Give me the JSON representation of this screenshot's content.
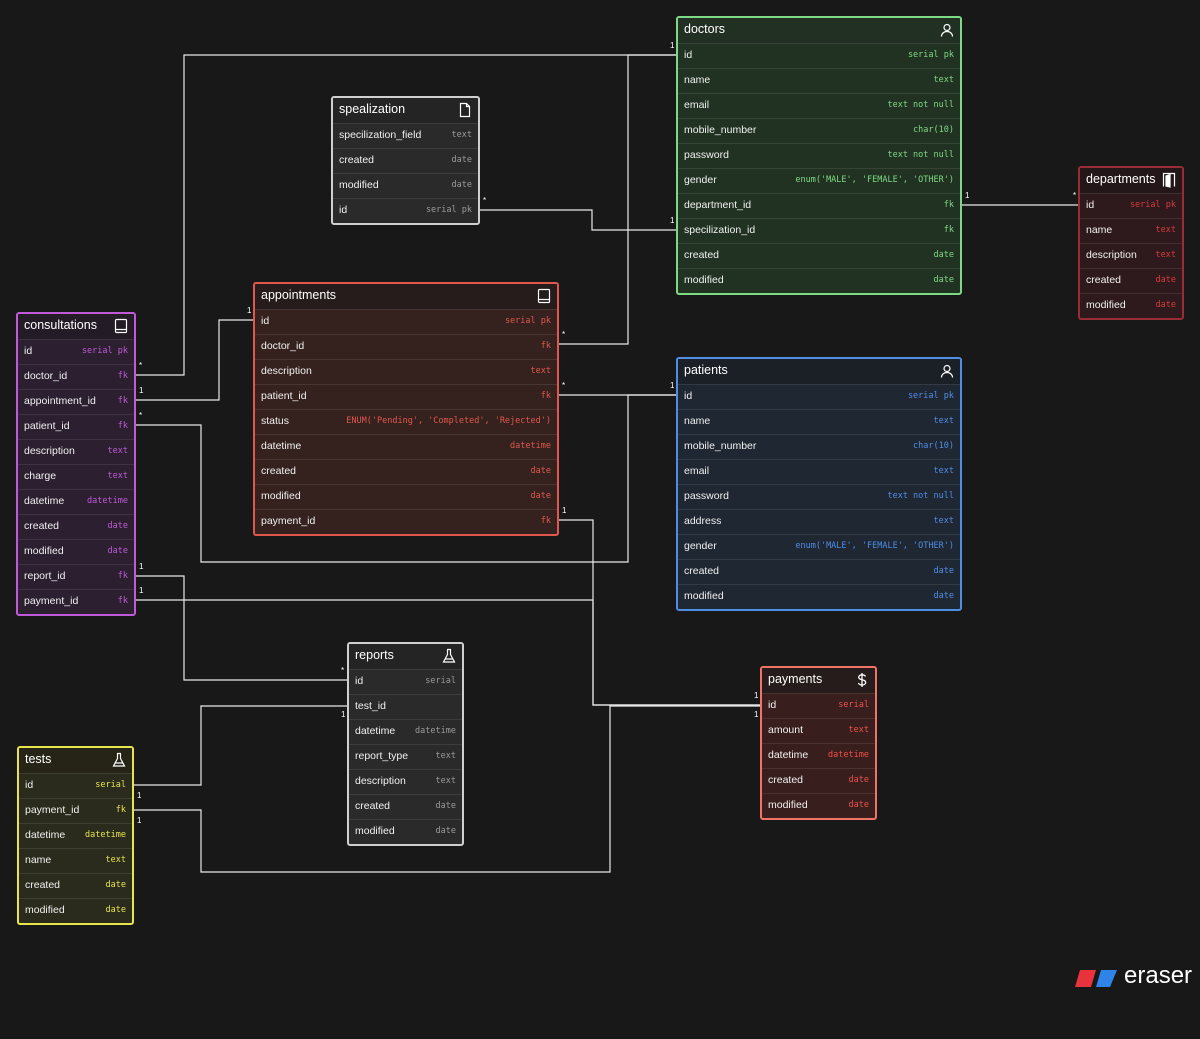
{
  "colors": {
    "doctors": {
      "border": "#7ed984",
      "header_bg": "#222f23",
      "body_bg": "#213222",
      "type": "#7ed984"
    },
    "spealization": {
      "border": "#cfcfcf",
      "header_bg": "#242424",
      "body_bg": "#2a2a2a",
      "type": "#9a9a9a"
    },
    "appointments": {
      "border": "#e0584c",
      "header_bg": "#251c1b",
      "body_bg": "#35221f",
      "type": "#e0584c"
    },
    "consultations": {
      "border": "#c05ad8",
      "header_bg": "#231c26",
      "body_bg": "#2b1f30",
      "type": "#c05ad8"
    },
    "departments": {
      "border": "#9a2c34",
      "header_bg": "#231719",
      "body_bg": "#2e1a1d",
      "type": "#d8393f"
    },
    "patients": {
      "border": "#4f8ee6",
      "header_bg": "#1b1f26",
      "body_bg": "#1f2732",
      "type": "#4f8ee6"
    },
    "reports": {
      "border": "#cfcfcf",
      "header_bg": "#242424",
      "body_bg": "#2a2a2a",
      "type": "#9a9a9a"
    },
    "payments": {
      "border": "#f07468",
      "header_bg": "#261c1b",
      "body_bg": "#381f1d",
      "type": "#f0504a"
    },
    "tests": {
      "border": "#e7e44c",
      "header_bg": "#252416",
      "body_bg": "#2a2b1c",
      "type": "#e7e44c"
    },
    "link": "#e8e8e8",
    "brand_red": "#e8333c",
    "brand_blue": "#2e84e8"
  },
  "entities": {
    "doctors": {
      "title": "doctors",
      "icon": "user-icon",
      "fields": [
        {
          "name": "id",
          "type": "serial pk"
        },
        {
          "name": "name",
          "type": "text"
        },
        {
          "name": "email",
          "type": "text not null"
        },
        {
          "name": "mobile_number",
          "type": "char(10)"
        },
        {
          "name": "password",
          "type": "text not null"
        },
        {
          "name": "gender",
          "type": "enum('MALE', 'FEMALE', 'OTHER')"
        },
        {
          "name": "department_id",
          "type": "fk"
        },
        {
          "name": "specilization_id",
          "type": "fk"
        },
        {
          "name": "created",
          "type": "date"
        },
        {
          "name": "modified",
          "type": "date"
        }
      ]
    },
    "spealization": {
      "title": "spealization",
      "icon": "document-icon",
      "fields": [
        {
          "name": "specilization_field",
          "type": "text"
        },
        {
          "name": "created",
          "type": "date"
        },
        {
          "name": "modified",
          "type": "date"
        },
        {
          "name": "id",
          "type": "serial pk"
        }
      ]
    },
    "appointments": {
      "title": "appointments",
      "icon": "book-icon",
      "fields": [
        {
          "name": "id",
          "type": "serial pk"
        },
        {
          "name": "doctor_id",
          "type": "fk"
        },
        {
          "name": "description",
          "type": "text"
        },
        {
          "name": "patient_id",
          "type": "fk"
        },
        {
          "name": "status",
          "type": "ENUM('Pending', 'Completed', 'Rejected')"
        },
        {
          "name": "datetime",
          "type": "datetime"
        },
        {
          "name": "created",
          "type": "date"
        },
        {
          "name": "modified",
          "type": "date"
        },
        {
          "name": "payment_id",
          "type": "fk"
        }
      ]
    },
    "consultations": {
      "title": "consultations",
      "icon": "book-icon",
      "fields": [
        {
          "name": "id",
          "type": "serial pk"
        },
        {
          "name": "doctor_id",
          "type": "fk"
        },
        {
          "name": "appointment_id",
          "type": "fk"
        },
        {
          "name": "patient_id",
          "type": "fk"
        },
        {
          "name": "description",
          "type": "text"
        },
        {
          "name": "charge",
          "type": "text"
        },
        {
          "name": "datetime",
          "type": "datetime"
        },
        {
          "name": "created",
          "type": "date"
        },
        {
          "name": "modified",
          "type": "date"
        },
        {
          "name": "report_id",
          "type": "fk"
        },
        {
          "name": "payment_id",
          "type": "fk"
        }
      ]
    },
    "departments": {
      "title": "departments",
      "icon": "door-icon",
      "fields": [
        {
          "name": "id",
          "type": "serial pk"
        },
        {
          "name": "name",
          "type": "text"
        },
        {
          "name": "description",
          "type": "text"
        },
        {
          "name": "created",
          "type": "date"
        },
        {
          "name": "modified",
          "type": "date"
        }
      ]
    },
    "patients": {
      "title": "patients",
      "icon": "user-icon",
      "fields": [
        {
          "name": "id",
          "type": "serial pk"
        },
        {
          "name": "name",
          "type": "text"
        },
        {
          "name": "mobile_number",
          "type": "char(10)"
        },
        {
          "name": "email",
          "type": "text"
        },
        {
          "name": "password",
          "type": "text not null"
        },
        {
          "name": "address",
          "type": "text"
        },
        {
          "name": "gender",
          "type": "enum('MALE', 'FEMALE', 'OTHER')"
        },
        {
          "name": "created",
          "type": "date"
        },
        {
          "name": "modified",
          "type": "date"
        }
      ]
    },
    "reports": {
      "title": "reports",
      "icon": "flask-icon",
      "fields": [
        {
          "name": "id",
          "type": "serial"
        },
        {
          "name": "test_id",
          "type": ""
        },
        {
          "name": "datetime",
          "type": "datetime"
        },
        {
          "name": "report_type",
          "type": "text"
        },
        {
          "name": "description",
          "type": "text"
        },
        {
          "name": "created",
          "type": "date"
        },
        {
          "name": "modified",
          "type": "date"
        }
      ]
    },
    "payments": {
      "title": "payments",
      "icon": "dollar-icon",
      "fields": [
        {
          "name": "id",
          "type": "serial"
        },
        {
          "name": "amount",
          "type": "text"
        },
        {
          "name": "datetime",
          "type": "datetime"
        },
        {
          "name": "created",
          "type": "date"
        },
        {
          "name": "modified",
          "type": "date"
        }
      ]
    },
    "tests": {
      "title": "tests",
      "icon": "flask-icon",
      "fields": [
        {
          "name": "id",
          "type": "serial"
        },
        {
          "name": "payment_id",
          "type": "fk"
        },
        {
          "name": "datetime",
          "type": "datetime"
        },
        {
          "name": "name",
          "type": "text"
        },
        {
          "name": "created",
          "type": "date"
        },
        {
          "name": "modified",
          "type": "date"
        }
      ]
    }
  },
  "relations": [
    {
      "from": "consultations.doctor_id",
      "to": "doctors.id",
      "from_card": "*",
      "to_card": "1"
    },
    {
      "from": "appointments.doctor_id",
      "to": "doctors.id",
      "from_card": "*",
      "to_card": "1"
    },
    {
      "from": "spealization.id",
      "to": "doctors.specilization_id",
      "from_card": "*",
      "to_card": "1"
    },
    {
      "from": "doctors.department_id",
      "to": "departments.id",
      "from_card": "1",
      "to_card": "*"
    },
    {
      "from": "consultations.appointment_id",
      "to": "appointments.id",
      "from_card": "1",
      "to_card": "1"
    },
    {
      "from": "appointments.patient_id",
      "to": "patients.id",
      "from_card": "*",
      "to_card": "1"
    },
    {
      "from": "consultations.patient_id",
      "to": "patients.id",
      "from_card": "*",
      "to_card": "1"
    },
    {
      "from": "appointments.payment_id",
      "to": "payments.id",
      "from_card": "1",
      "to_card": "1"
    },
    {
      "from": "consultations.report_id",
      "to": "reports.id",
      "from_card": "1",
      "to_card": "*"
    },
    {
      "from": "consultations.payment_id",
      "to": "payments.id",
      "from_card": "1",
      "to_card": "1"
    },
    {
      "from": "tests.id",
      "to": "reports.test_id",
      "from_card": "1",
      "to_card": "1"
    },
    {
      "from": "tests.payment_id",
      "to": "payments.id",
      "from_card": "1",
      "to_card": "1"
    }
  ],
  "brand": {
    "name": "eraser"
  }
}
